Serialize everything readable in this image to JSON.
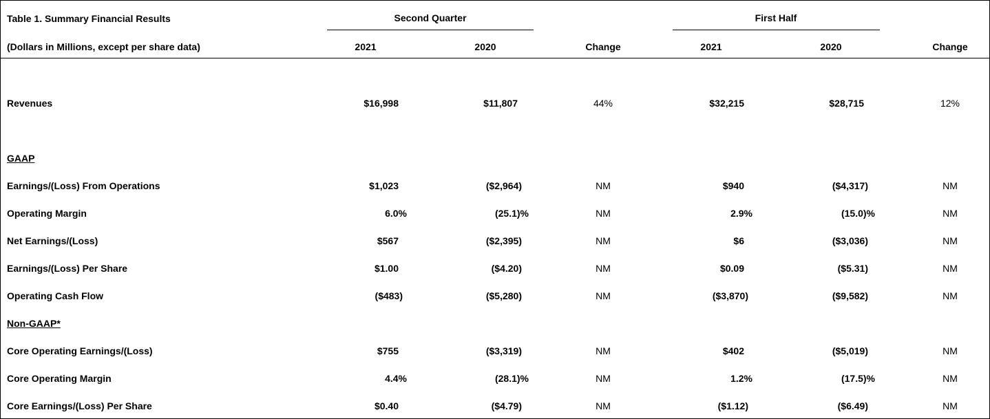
{
  "table": {
    "title": "Table 1. Summary Financial Results",
    "subtitle": "(Dollars in Millions, except per share data)",
    "groups": {
      "second_quarter": "Second Quarter",
      "first_half": "First Half"
    },
    "columns": [
      "2021",
      "2020",
      "Change",
      "2021",
      "2020",
      "Change"
    ],
    "revenues": {
      "label": "Revenues",
      "values": [
        "$16,998",
        "$11,807",
        "44%",
        "$32,215",
        "$28,715",
        "12%"
      ]
    },
    "gaap_heading": "GAAP",
    "gaap_rows": [
      {
        "label": "Earnings/(Loss) From Operations",
        "values": [
          "$1,023",
          "($2,964)",
          "NM",
          "$940",
          "($4,317)",
          "NM"
        ]
      },
      {
        "label": "Operating Margin",
        "values": [
          "6.0%",
          "(25.1)%",
          "NM",
          "2.9%",
          "(15.0)%",
          "NM"
        ]
      },
      {
        "label": "Net Earnings/(Loss)",
        "values": [
          "$567",
          "($2,395)",
          "NM",
          "$6",
          "($3,036)",
          "NM"
        ]
      },
      {
        "label": "Earnings/(Loss) Per Share",
        "values": [
          "$1.00",
          "($4.20)",
          "NM",
          "$0.09",
          "($5.31)",
          "NM"
        ]
      },
      {
        "label": "Operating Cash Flow",
        "values": [
          "($483)",
          "($5,280)",
          "NM",
          "($3,870)",
          "($9,582)",
          "NM"
        ]
      }
    ],
    "nongaap_heading": "Non-GAAP*",
    "nongaap_rows": [
      {
        "label": "Core Operating Earnings/(Loss)",
        "values": [
          "$755",
          "($3,319)",
          "NM",
          "$402",
          "($5,019)",
          "NM"
        ]
      },
      {
        "label": "Core Operating Margin",
        "values": [
          "4.4%",
          "(28.1)%",
          "NM",
          "1.2%",
          "(17.5)%",
          "NM"
        ]
      },
      {
        "label": "Core Earnings/(Loss) Per Share",
        "values": [
          "$0.40",
          "($4.79)",
          "NM",
          "($1.12)",
          "($6.49)",
          "NM"
        ]
      }
    ]
  }
}
